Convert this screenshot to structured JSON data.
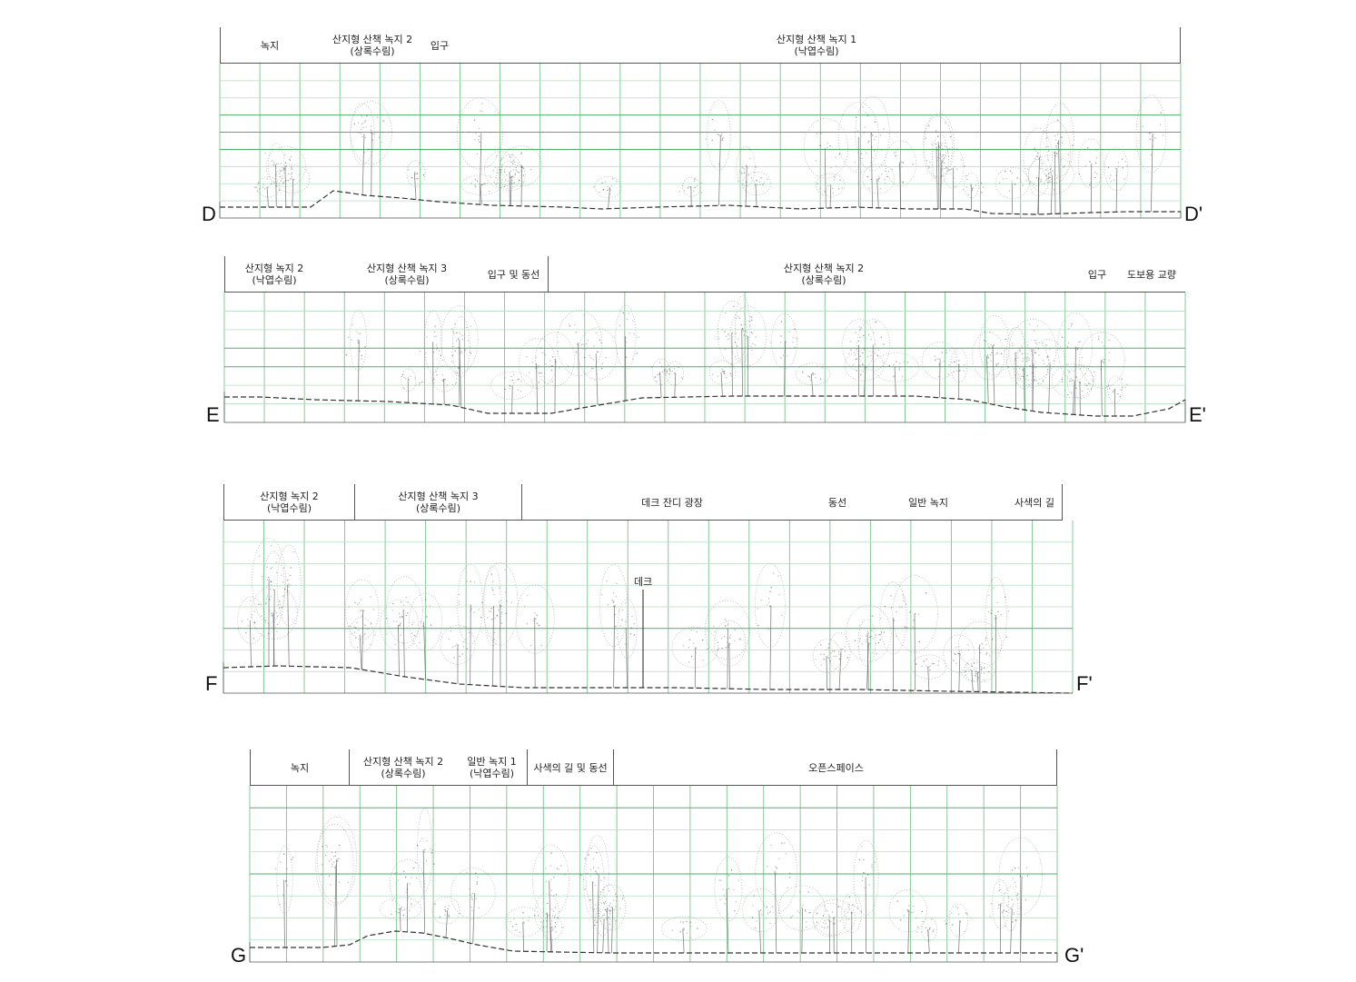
{
  "sections": [
    {
      "id": "D",
      "start_label": "D",
      "end_label": "D'",
      "zones": [
        {
          "line1": "녹지",
          "line2": ""
        },
        {
          "line1": "산지형 산책 녹지 2",
          "line2": "(상록수림)"
        },
        {
          "line1": "입구",
          "line2": ""
        },
        {
          "line1": "산지형 산책 녹지 1",
          "line2": "(낙엽수림)"
        }
      ]
    },
    {
      "id": "E",
      "start_label": "E",
      "end_label": "E'",
      "zones": [
        {
          "line1": "산지형 녹지 2",
          "line2": "(낙엽수림)"
        },
        {
          "line1": "산지형 산책 녹지 3",
          "line2": "(상록수림)"
        },
        {
          "line1": "입구 및 동선",
          "line2": ""
        },
        {
          "line1": "산지형 산책 녹지 2",
          "line2": "(상록수림)"
        },
        {
          "line1": "입구",
          "line2": ""
        },
        {
          "line1": "도보용 교량",
          "line2": ""
        }
      ]
    },
    {
      "id": "F",
      "start_label": "F",
      "end_label": "F'",
      "zones": [
        {
          "line1": "산지형 녹지 2",
          "line2": "(낙엽수림)"
        },
        {
          "line1": "산지형 산책 녹지 3",
          "line2": "(상록수림)"
        },
        {
          "line1": "데크 잔디 광장",
          "line2": ""
        },
        {
          "line1": "동선",
          "line2": ""
        },
        {
          "line1": "일반 녹지",
          "line2": ""
        },
        {
          "line1": "사색의 길",
          "line2": ""
        }
      ],
      "callout": "데크"
    },
    {
      "id": "G",
      "start_label": "G",
      "end_label": "G'",
      "zones": [
        {
          "line1": "녹지",
          "line2": ""
        },
        {
          "line1": "산지형 산책 녹지 2",
          "line2": "(상록수림)"
        },
        {
          "line1": "일반 녹지 1",
          "line2": "(낙엽수림)"
        },
        {
          "line1": "사색의 길 및 동선",
          "line2": ""
        },
        {
          "line1": "오픈스페이스",
          "line2": ""
        }
      ]
    }
  ],
  "colors": {
    "grid": "#4fb06a",
    "grid_light": "#b8dcc2",
    "vegetation": "#8a8f8c",
    "vegetation_dark": "#4c524e",
    "ground": "#333333"
  }
}
